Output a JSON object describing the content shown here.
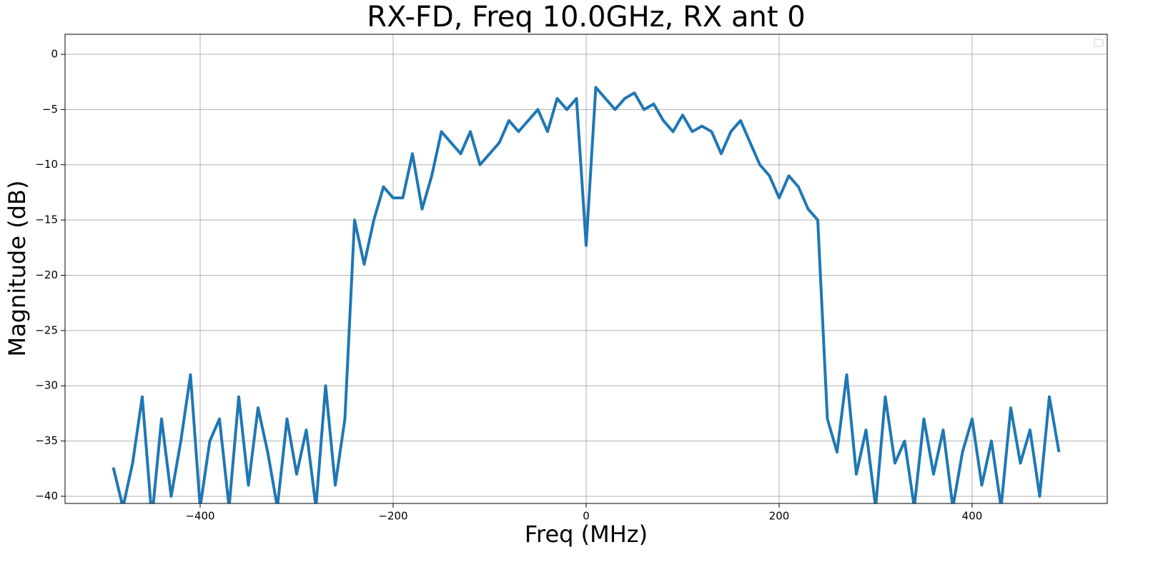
{
  "chart_data": {
    "type": "line",
    "title": "RX-FD, Freq 10.0GHz, RX ant 0",
    "x_label": "Freq (MHz)",
    "y_label": "Magnitude (dB)",
    "x": [
      -490,
      -480,
      -470,
      -460,
      -450,
      -440,
      -430,
      -420,
      -410,
      -400,
      -390,
      -380,
      -370,
      -360,
      -350,
      -340,
      -330,
      -320,
      -310,
      -300,
      -290,
      -280,
      -270,
      -260,
      -250,
      -240,
      -230,
      -220,
      -210,
      -200,
      -190,
      -180,
      -170,
      -160,
      -150,
      -140,
      -130,
      -120,
      -110,
      -100,
      -90,
      -80,
      -70,
      -60,
      -50,
      -40,
      -30,
      -20,
      -10,
      0,
      10,
      20,
      30,
      40,
      50,
      60,
      70,
      80,
      90,
      100,
      110,
      120,
      130,
      140,
      150,
      160,
      170,
      180,
      190,
      200,
      210,
      220,
      230,
      240,
      250,
      260,
      270,
      280,
      290,
      300,
      310,
      320,
      330,
      340,
      350,
      360,
      370,
      380,
      390,
      400,
      410,
      420,
      430,
      440,
      450,
      460,
      470,
      480,
      490
    ],
    "series": [
      {
        "color": "#1f77b4",
        "values": [
          -37.4,
          -41,
          -37,
          -31,
          -42,
          -33,
          -40,
          -35,
          -29,
          -41,
          -35,
          -33,
          -41,
          -31,
          -39,
          -32,
          -36,
          -41,
          -33,
          -38,
          -34,
          -41,
          -30,
          -39,
          -33,
          -15,
          -19,
          -15,
          -12,
          -13,
          -13,
          -9,
          -14,
          -11,
          -7,
          -8,
          -9,
          -7,
          -10,
          -9,
          -8,
          -6,
          -7,
          -6,
          -5,
          -7,
          -4,
          -5,
          -4,
          -17.3,
          -3,
          -4,
          -5,
          -4,
          -3.5,
          -5,
          -4.5,
          -6,
          -7,
          -5.5,
          -7,
          -6.5,
          -7,
          -9,
          -7,
          -6,
          -8,
          -10,
          -11,
          -13,
          -11,
          -12,
          -14,
          -15,
          -33,
          -36,
          -29,
          -38,
          -34,
          -41,
          -31,
          -37,
          -35,
          -41,
          -33,
          -38,
          -34,
          -41,
          -36,
          -33,
          -39,
          -35,
          -41,
          -32,
          -37,
          -34,
          -40,
          -31,
          -36
        ]
      }
    ],
    "xlim": [
      -540,
      540
    ],
    "ylim": [
      -40.65,
      1.81
    ],
    "xticks": [
      {
        "value": -400,
        "label": "−400"
      },
      {
        "value": -200,
        "label": "−200"
      },
      0,
      200,
      400
    ],
    "yticks": [
      {
        "value": -40,
        "label": "−40"
      },
      {
        "value": -35,
        "label": "−35"
      },
      {
        "value": -30,
        "label": "−30"
      },
      {
        "value": -25,
        "label": "−25"
      },
      {
        "value": -20,
        "label": "−20"
      },
      {
        "value": -15,
        "label": "−15"
      },
      {
        "value": -10,
        "label": "−10"
      },
      {
        "value": -5,
        "label": "−5"
      },
      0
    ],
    "grid": true
  }
}
